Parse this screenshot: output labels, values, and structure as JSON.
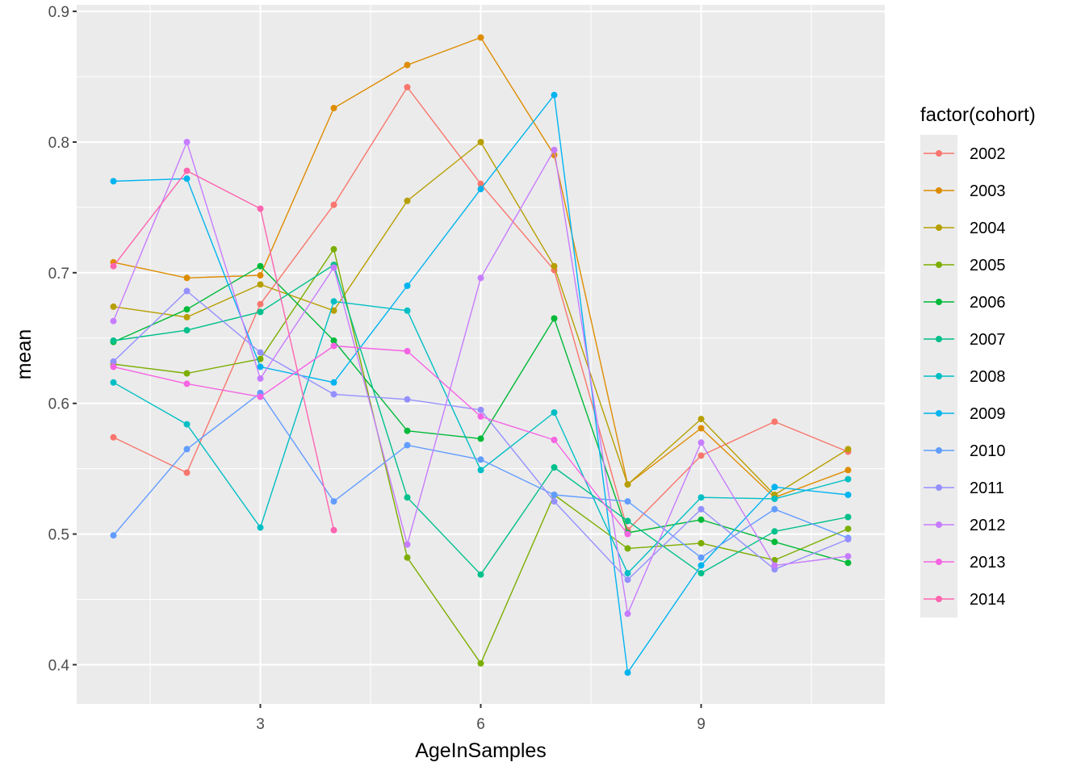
{
  "chart_data": {
    "type": "line",
    "xlabel": "AgeInSamples",
    "ylabel": "mean",
    "xlim": [
      0.5,
      11.5
    ],
    "ylim": [
      0.37,
      0.905
    ],
    "x_ticks": [
      3,
      6,
      9
    ],
    "y_ticks": [
      0.4,
      0.5,
      0.6,
      0.7,
      0.8,
      0.9
    ],
    "x_tick_labels": [
      "3",
      "6",
      "9"
    ],
    "y_tick_labels": [
      "0.4",
      "0.5",
      "0.6",
      "0.7",
      "0.8",
      "0.9"
    ],
    "grid": true,
    "legend": {
      "title": "factor(cohort)",
      "position": "right"
    },
    "x": [
      1,
      2,
      3,
      4,
      5,
      6,
      7,
      8,
      9,
      10,
      11
    ],
    "series": [
      {
        "name": "2002",
        "color": "#F8766D",
        "values": [
          0.574,
          0.547,
          0.676,
          0.752,
          0.842,
          0.768,
          0.702,
          0.503,
          0.56,
          0.586,
          0.563
        ]
      },
      {
        "name": "2003",
        "color": "#DE8C00",
        "values": [
          0.708,
          0.696,
          0.698,
          0.826,
          0.859,
          0.88,
          0.79,
          0.538,
          0.581,
          0.528,
          0.549
        ]
      },
      {
        "name": "2004",
        "color": "#B79F00",
        "values": [
          0.674,
          0.666,
          0.691,
          0.671,
          0.755,
          0.8,
          0.705,
          0.538,
          0.588,
          0.53,
          0.565
        ]
      },
      {
        "name": "2005",
        "color": "#7CAE00",
        "values": [
          0.63,
          0.623,
          0.634,
          0.718,
          0.482,
          0.401,
          0.53,
          0.489,
          0.493,
          0.48,
          0.504
        ]
      },
      {
        "name": "2006",
        "color": "#00BA38",
        "values": [
          0.647,
          0.672,
          0.705,
          0.648,
          0.579,
          0.573,
          0.665,
          0.501,
          0.511,
          0.494,
          0.478
        ]
      },
      {
        "name": "2007",
        "color": "#00C08B",
        "values": [
          0.648,
          0.656,
          0.67,
          0.706,
          0.528,
          0.469,
          0.551,
          0.51,
          0.47,
          0.502,
          0.513
        ]
      },
      {
        "name": "2008",
        "color": "#00BFC4",
        "values": [
          0.616,
          0.584,
          0.505,
          0.678,
          0.671,
          0.549,
          0.593,
          0.47,
          0.528,
          0.527,
          0.542
        ]
      },
      {
        "name": "2009",
        "color": "#00B4F0",
        "values": [
          0.77,
          0.772,
          0.628,
          0.616,
          0.69,
          0.764,
          0.836,
          0.394,
          0.476,
          0.536,
          0.53
        ]
      },
      {
        "name": "2010",
        "color": "#619CFF",
        "values": [
          0.499,
          0.565,
          0.608,
          0.525,
          0.568,
          0.557,
          0.53,
          0.525,
          0.482,
          0.519,
          0.497
        ]
      },
      {
        "name": "2011",
        "color": "#9590FF",
        "values": [
          0.632,
          0.686,
          0.639,
          0.607,
          0.603,
          0.595,
          0.525,
          0.465,
          0.519,
          0.473,
          0.496
        ]
      },
      {
        "name": "2012",
        "color": "#C77CFF",
        "values": [
          0.663,
          0.8,
          0.619,
          0.704,
          0.492,
          0.696,
          0.794,
          0.439,
          0.57,
          0.476,
          0.483
        ]
      },
      {
        "name": "2013",
        "color": "#F564E3",
        "values": [
          0.628,
          0.615,
          0.605,
          0.644,
          0.64,
          0.59,
          0.572,
          0.5,
          null,
          null,
          null
        ]
      },
      {
        "name": "2014",
        "color": "#FF64B0",
        "values": [
          0.705,
          0.778,
          0.749,
          0.503,
          null,
          null,
          null,
          null,
          null,
          null,
          null
        ]
      }
    ]
  }
}
